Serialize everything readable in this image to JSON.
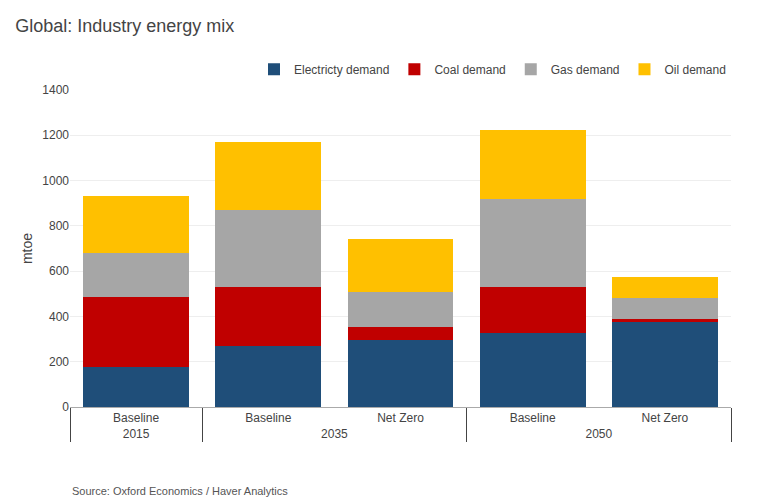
{
  "chart_data": {
    "type": "bar",
    "title": "Global: Industry energy mix",
    "y_label": "mtoe",
    "categories": [
      [
        "2015",
        "Baseline"
      ],
      [
        "2035",
        "Baseline"
      ],
      [
        "2035",
        "Net Zero"
      ],
      [
        "2050",
        "Baseline"
      ],
      [
        "2050",
        "Net Zero"
      ]
    ],
    "series": [
      {
        "name": "Electricty demand",
        "color": "#1F4E79",
        "values": [
          175,
          270,
          295,
          325,
          375
        ]
      },
      {
        "name": "Coal demand",
        "color": "#C00000",
        "values": [
          310,
          260,
          60,
          205,
          15
        ]
      },
      {
        "name": "Gas demand",
        "color": "#A6A6A6",
        "values": [
          195,
          340,
          155,
          390,
          90
        ]
      },
      {
        "name": "Oil demand",
        "color": "#FFC000",
        "values": [
          250,
          300,
          230,
          305,
          95
        ]
      }
    ],
    "stacked": true,
    "ylim": [
      0,
      1400
    ],
    "yticks": [
      0,
      200,
      400,
      600,
      800,
      1000,
      1200,
      1400
    ],
    "grid": true,
    "legend": "upper right",
    "annotations": [
      "Source: Oxford Economics / Haver Analytics"
    ]
  }
}
